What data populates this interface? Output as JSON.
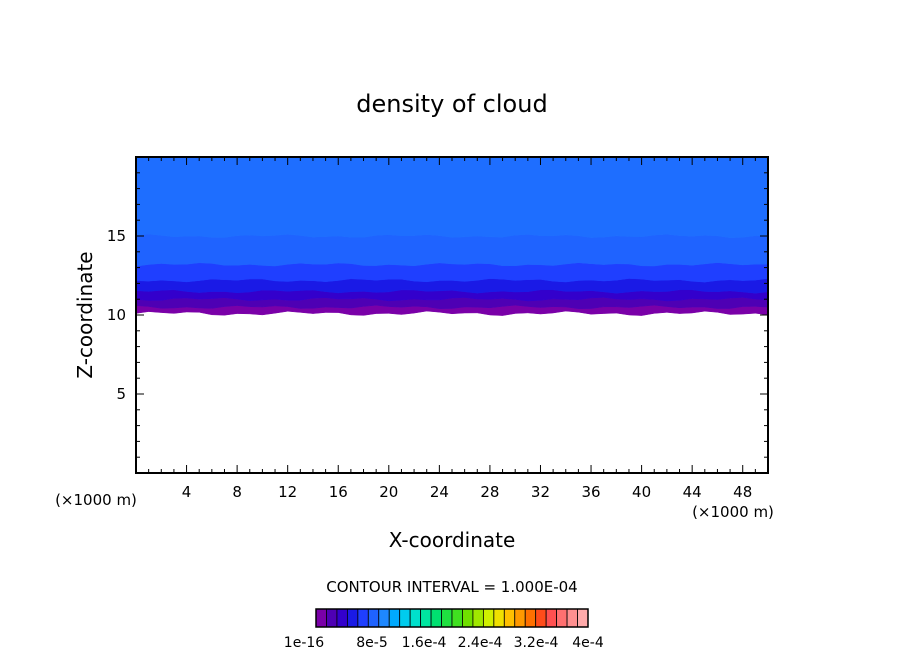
{
  "chart_data": {
    "type": "heatmap",
    "title": "density of cloud",
    "xlabel": "X-coordinate",
    "ylabel": "Z-coordinate",
    "x_unit_left": "(×1000 m)",
    "x_unit_right": "(×1000 m)",
    "xlim": [
      0,
      50
    ],
    "ylim": [
      0,
      20
    ],
    "x_ticks": [
      4,
      8,
      12,
      16,
      20,
      24,
      28,
      32,
      36,
      40,
      44,
      48
    ],
    "y_ticks": [
      5,
      10,
      15
    ],
    "contour_interval_text": "CONTOUR INTERVAL = 1.000E-04",
    "colorbar_labels": [
      "1e-16",
      "8e-5",
      "1.6e-4",
      "2.4e-4",
      "3.2e-4",
      "4e-4"
    ],
    "colorbar_colors": [
      "#7a00a8",
      "#4e00b4",
      "#3300cc",
      "#1a1ae6",
      "#1f3fff",
      "#1f63ff",
      "#1e88ff",
      "#00aaff",
      "#00ccee",
      "#00e0cc",
      "#00e6a0",
      "#00e070",
      "#1fe040",
      "#40e020",
      "#70e000",
      "#a0e800",
      "#d0f000",
      "#f0e000",
      "#ffc000",
      "#ff9900",
      "#ff7000",
      "#ff4c1a",
      "#ff5050",
      "#ff7070",
      "#ff9090",
      "#ffaaaa"
    ],
    "bands": [
      {
        "z_bottom": 10.1,
        "z_top": 10.5,
        "color": "#7a00a8"
      },
      {
        "z_bottom": 10.5,
        "z_top": 11.0,
        "color": "#4e00b4"
      },
      {
        "z_bottom": 11.0,
        "z_top": 11.5,
        "color": "#3300cc"
      },
      {
        "z_bottom": 11.5,
        "z_top": 12.2,
        "color": "#1a1ae6"
      },
      {
        "z_bottom": 12.2,
        "z_top": 13.2,
        "color": "#1f3fff"
      },
      {
        "z_bottom": 13.2,
        "z_top": 15.0,
        "color": "#1f63ff"
      },
      {
        "z_bottom": 15.0,
        "z_top": 20.0,
        "color": "#1e6eff"
      }
    ]
  }
}
